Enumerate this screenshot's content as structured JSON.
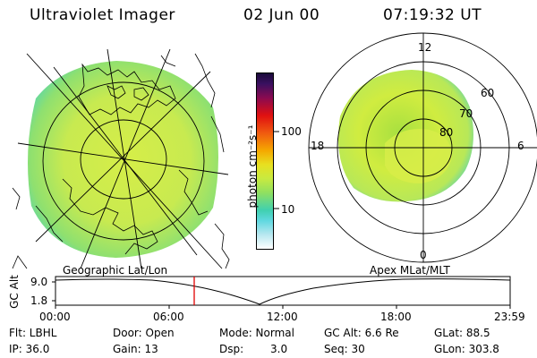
{
  "header": {
    "title": "Ultraviolet Imager",
    "date": "02 Jun 00",
    "time": "07:19:32 UT"
  },
  "colorbar": {
    "label": "photon cm⁻²s⁻¹",
    "ticks": [
      "100",
      "10"
    ],
    "scale": "log"
  },
  "polar_plot": {
    "mlt_labels": [
      "12",
      "18",
      "6",
      "0"
    ],
    "mlat_labels": [
      "60",
      "70",
      "80"
    ]
  },
  "panel_labels": {
    "left": "Geographic Lat/Lon",
    "right": "Apex MLat/MLT"
  },
  "timeline": {
    "ylabel": "GC Alt",
    "yticks": [
      "9.0",
      "1.8"
    ],
    "xticks": [
      "00:00",
      "06:00",
      "12:00",
      "18:00",
      "23:59"
    ],
    "cursor_time": "07:19:32"
  },
  "info": {
    "flt": "Flt: LBHL",
    "ip": "IP: 36.0",
    "door": "Door: Open",
    "gain": "Gain: 13",
    "mode": "Mode: Normal",
    "dsp_label": "Dsp:",
    "dsp_value": "3.0",
    "gcalt": "GC Alt: 6.6 Re",
    "seq": "Seq: 30",
    "glat": "GLat: 88.5",
    "glon": "GLon: 303.8"
  },
  "colors": {
    "cursor": "#e00000",
    "aurora_main": "#d8f040",
    "aurora_edge": "#60d8b0"
  }
}
